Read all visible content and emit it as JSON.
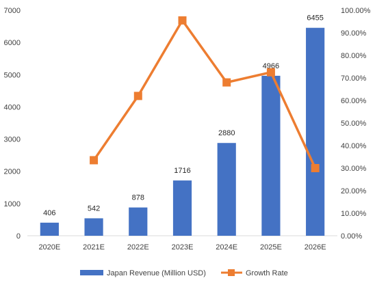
{
  "chart_data": {
    "type": "bar",
    "categories": [
      "2020E",
      "2021E",
      "2022E",
      "2023E",
      "2024E",
      "2025E",
      "2026E"
    ],
    "series": [
      {
        "name": "Japan Revenue (Million USD)",
        "type": "bar",
        "axis": "left",
        "color": "#4472C4",
        "values": [
          406,
          542,
          878,
          1716,
          2880,
          4966,
          6455
        ],
        "data_labels": [
          "406",
          "542",
          "878",
          "1716",
          "2880",
          "4966",
          "6455"
        ]
      },
      {
        "name": "Growth Rate",
        "type": "line",
        "axis": "right",
        "color": "#ED7D31",
        "values": [
          null,
          0.335,
          0.62,
          0.955,
          0.68,
          0.725,
          0.3
        ]
      }
    ],
    "left_axis": {
      "ylim": [
        0,
        7000
      ],
      "ticks": [
        "0",
        "1000",
        "2000",
        "3000",
        "4000",
        "5000",
        "6000",
        "7000"
      ]
    },
    "right_axis": {
      "ylim": [
        0,
        1.0
      ],
      "ticks": [
        "0.00%",
        "10.00%",
        "20.00%",
        "30.00%",
        "40.00%",
        "50.00%",
        "60.00%",
        "70.00%",
        "80.00%",
        "90.00%",
        "100.00%"
      ]
    },
    "grid": false,
    "legend": "bottom"
  }
}
